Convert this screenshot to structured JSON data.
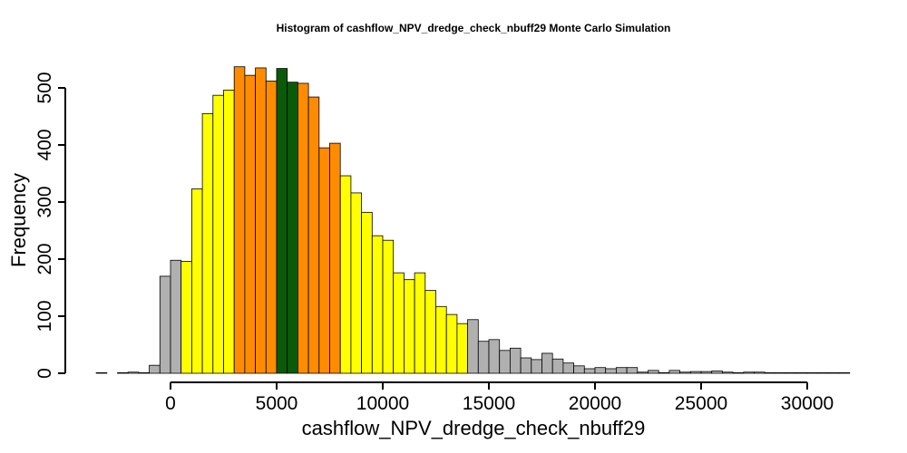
{
  "chart_data": {
    "type": "bar",
    "title": "Histogram of  cashflow_NPV_dredge_check_nbuff29  Monte Carlo Simulation",
    "xlabel": "cashflow_NPV_dredge_check_nbuff29",
    "ylabel": "Frequency",
    "bin_width": 500,
    "bin_start": -3500,
    "xlim": [
      -3500,
      32000
    ],
    "ylim": [
      0,
      540
    ],
    "x_ticks": [
      0,
      5000,
      10000,
      15000,
      20000,
      25000,
      30000
    ],
    "y_ticks": [
      0,
      100,
      200,
      300,
      400,
      500
    ],
    "grid": false,
    "legend": "none",
    "colors": {
      "gray": "#b0b0b0",
      "yellow": "#ffff00",
      "orange": "#ff8c00",
      "green": "#0a5a0a"
    },
    "bins": [
      {
        "x0": -3500,
        "x1": -3000,
        "value": 1,
        "color": "gray"
      },
      {
        "x0": -3000,
        "x1": -2500,
        "value": 0,
        "color": "gray"
      },
      {
        "x0": -2500,
        "x1": -2000,
        "value": 1,
        "color": "gray"
      },
      {
        "x0": -2000,
        "x1": -1500,
        "value": 2,
        "color": "gray"
      },
      {
        "x0": -1500,
        "x1": -1000,
        "value": 1,
        "color": "gray"
      },
      {
        "x0": -1000,
        "x1": -500,
        "value": 14,
        "color": "gray"
      },
      {
        "x0": -500,
        "x1": 0,
        "value": 170,
        "color": "gray"
      },
      {
        "x0": 0,
        "x1": 500,
        "value": 198,
        "color": "gray"
      },
      {
        "x0": 500,
        "x1": 1000,
        "value": 196,
        "color": "yellow"
      },
      {
        "x0": 1000,
        "x1": 1500,
        "value": 323,
        "color": "yellow"
      },
      {
        "x0": 1500,
        "x1": 2000,
        "value": 455,
        "color": "yellow"
      },
      {
        "x0": 2000,
        "x1": 2500,
        "value": 487,
        "color": "yellow"
      },
      {
        "x0": 2500,
        "x1": 3000,
        "value": 496,
        "color": "yellow"
      },
      {
        "x0": 3000,
        "x1": 3500,
        "value": 537,
        "color": "orange"
      },
      {
        "x0": 3500,
        "x1": 4000,
        "value": 522,
        "color": "orange"
      },
      {
        "x0": 4000,
        "x1": 4500,
        "value": 535,
        "color": "orange"
      },
      {
        "x0": 4500,
        "x1": 5000,
        "value": 512,
        "color": "orange"
      },
      {
        "x0": 5000,
        "x1": 5500,
        "value": 534,
        "color": "green"
      },
      {
        "x0": 5500,
        "x1": 6000,
        "value": 510,
        "color": "green"
      },
      {
        "x0": 6000,
        "x1": 6500,
        "value": 508,
        "color": "orange"
      },
      {
        "x0": 6500,
        "x1": 7000,
        "value": 484,
        "color": "orange"
      },
      {
        "x0": 7000,
        "x1": 7500,
        "value": 395,
        "color": "orange"
      },
      {
        "x0": 7500,
        "x1": 8000,
        "value": 403,
        "color": "orange"
      },
      {
        "x0": 8000,
        "x1": 8500,
        "value": 346,
        "color": "yellow"
      },
      {
        "x0": 8500,
        "x1": 9000,
        "value": 316,
        "color": "yellow"
      },
      {
        "x0": 9000,
        "x1": 9500,
        "value": 282,
        "color": "yellow"
      },
      {
        "x0": 9500,
        "x1": 10000,
        "value": 241,
        "color": "yellow"
      },
      {
        "x0": 10000,
        "x1": 10500,
        "value": 233,
        "color": "yellow"
      },
      {
        "x0": 10500,
        "x1": 11000,
        "value": 176,
        "color": "yellow"
      },
      {
        "x0": 11000,
        "x1": 11500,
        "value": 164,
        "color": "yellow"
      },
      {
        "x0": 11500,
        "x1": 12000,
        "value": 176,
        "color": "yellow"
      },
      {
        "x0": 12000,
        "x1": 12500,
        "value": 145,
        "color": "yellow"
      },
      {
        "x0": 12500,
        "x1": 13000,
        "value": 117,
        "color": "yellow"
      },
      {
        "x0": 13000,
        "x1": 13500,
        "value": 103,
        "color": "yellow"
      },
      {
        "x0": 13500,
        "x1": 14000,
        "value": 87,
        "color": "yellow"
      },
      {
        "x0": 14000,
        "x1": 14500,
        "value": 94,
        "color": "gray"
      },
      {
        "x0": 14500,
        "x1": 15000,
        "value": 56,
        "color": "gray"
      },
      {
        "x0": 15000,
        "x1": 15500,
        "value": 59,
        "color": "gray"
      },
      {
        "x0": 15500,
        "x1": 16000,
        "value": 40,
        "color": "gray"
      },
      {
        "x0": 16000,
        "x1": 16500,
        "value": 44,
        "color": "gray"
      },
      {
        "x0": 16500,
        "x1": 17000,
        "value": 27,
        "color": "gray"
      },
      {
        "x0": 17000,
        "x1": 17500,
        "value": 24,
        "color": "gray"
      },
      {
        "x0": 17500,
        "x1": 18000,
        "value": 35,
        "color": "gray"
      },
      {
        "x0": 18000,
        "x1": 18500,
        "value": 25,
        "color": "gray"
      },
      {
        "x0": 18500,
        "x1": 19000,
        "value": 18,
        "color": "gray"
      },
      {
        "x0": 19000,
        "x1": 19500,
        "value": 13,
        "color": "gray"
      },
      {
        "x0": 19500,
        "x1": 20000,
        "value": 8,
        "color": "gray"
      },
      {
        "x0": 20000,
        "x1": 20500,
        "value": 10,
        "color": "gray"
      },
      {
        "x0": 20500,
        "x1": 21000,
        "value": 8,
        "color": "gray"
      },
      {
        "x0": 21000,
        "x1": 21500,
        "value": 10,
        "color": "gray"
      },
      {
        "x0": 21500,
        "x1": 22000,
        "value": 10,
        "color": "gray"
      },
      {
        "x0": 22000,
        "x1": 22500,
        "value": 2,
        "color": "gray"
      },
      {
        "x0": 22500,
        "x1": 23000,
        "value": 5,
        "color": "gray"
      },
      {
        "x0": 23000,
        "x1": 23500,
        "value": 1,
        "color": "gray"
      },
      {
        "x0": 23500,
        "x1": 24000,
        "value": 5,
        "color": "gray"
      },
      {
        "x0": 24000,
        "x1": 24500,
        "value": 2,
        "color": "gray"
      },
      {
        "x0": 24500,
        "x1": 25000,
        "value": 3,
        "color": "gray"
      },
      {
        "x0": 25000,
        "x1": 25500,
        "value": 3,
        "color": "gray"
      },
      {
        "x0": 25500,
        "x1": 26000,
        "value": 4,
        "color": "gray"
      },
      {
        "x0": 26000,
        "x1": 26500,
        "value": 2,
        "color": "gray"
      },
      {
        "x0": 26500,
        "x1": 27000,
        "value": 1,
        "color": "gray"
      },
      {
        "x0": 27000,
        "x1": 27500,
        "value": 2,
        "color": "gray"
      },
      {
        "x0": 27500,
        "x1": 28000,
        "value": 2,
        "color": "gray"
      },
      {
        "x0": 28000,
        "x1": 28500,
        "value": 1,
        "color": "gray"
      },
      {
        "x0": 28500,
        "x1": 29000,
        "value": 1,
        "color": "gray"
      },
      {
        "x0": 29000,
        "x1": 29500,
        "value": 1,
        "color": "gray"
      },
      {
        "x0": 29500,
        "x1": 30000,
        "value": 1,
        "color": "gray"
      },
      {
        "x0": 30000,
        "x1": 30500,
        "value": 1,
        "color": "gray"
      },
      {
        "x0": 30500,
        "x1": 31000,
        "value": 1,
        "color": "gray"
      },
      {
        "x0": 31000,
        "x1": 31500,
        "value": 1,
        "color": "gray"
      },
      {
        "x0": 31500,
        "x1": 32000,
        "value": 1,
        "color": "gray"
      }
    ]
  }
}
